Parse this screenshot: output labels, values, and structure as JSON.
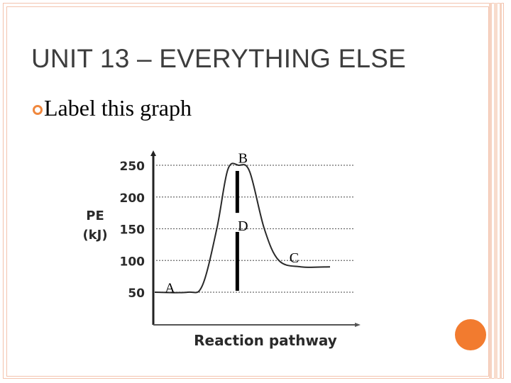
{
  "slide": {
    "title": "UNIT 13 – EVERYTHING ELSE",
    "bullet": "Label this graph"
  },
  "chart_data": {
    "type": "line",
    "xlabel": "Reaction pathway",
    "ylabel": "PE (kJ)",
    "yticks": [
      50,
      100,
      150,
      200,
      250
    ],
    "ylim": [
      25,
      260
    ],
    "grid": true,
    "series": [
      {
        "x": [
          0,
          0.9,
          1.3,
          1.7,
          2.0,
          2.3,
          2.6,
          3.0,
          3.4,
          4.0,
          4.8
        ],
        "y": [
          50,
          50,
          60,
          150,
          243,
          250,
          240,
          150,
          100,
          90,
          90
        ]
      }
    ],
    "annotations": [
      {
        "text": "A",
        "x": 0.3,
        "y": 57
      },
      {
        "text": "B",
        "x": 2.3,
        "y": 262
      },
      {
        "text": "D",
        "x": 2.3,
        "y": 155
      },
      {
        "text": "C",
        "x": 3.7,
        "y": 105
      }
    ],
    "markers": [
      {
        "name": "activation-energy-bar",
        "x": 2.3,
        "y_from": 50,
        "y_to": 250
      }
    ]
  },
  "colors": {
    "title_text": "#3d3d3d",
    "bullet_accent": "#f0883e",
    "orange_dot": "#f27b2f",
    "border": "#f3c3ae"
  }
}
